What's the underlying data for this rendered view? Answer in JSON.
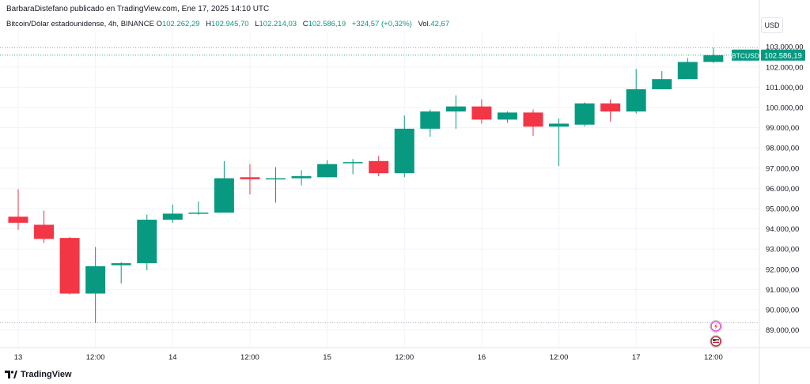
{
  "header": {
    "text": "BarbaraDistefano publicado en TradingView.com, Ene 17, 2025 14:10 UTC"
  },
  "legend": {
    "symbol": "Bitcoin/Dólar estadounidense, 4h, BINANCE",
    "open_label": "O",
    "open": "102.262,29",
    "high_label": "H",
    "high": "102.945,70",
    "low_label": "L",
    "low": "102.214,03",
    "close_label": "C",
    "close": "102.586,19",
    "change": "+324,57 (+0,32%)",
    "vol_label": "Vol.",
    "vol": "42,67"
  },
  "currency": "USD",
  "price_tag": {
    "symbol": "BTCUSD",
    "value": "102.586,19"
  },
  "footer": {
    "brand": "TradingView"
  },
  "colors": {
    "up": "#089981",
    "down": "#f23645",
    "grid": "#f0f3fa"
  },
  "icons": [
    "lightning-event-icon",
    "us-flag-event-icon"
  ],
  "chart_data": {
    "type": "candlestick",
    "title": "Bitcoin/Dólar estadounidense, 4h, BINANCE",
    "interval": "4h",
    "yaxis_ticks": [
      103000,
      102000,
      101000,
      100000,
      99000,
      98000,
      97000,
      96000,
      95000,
      94000,
      93000,
      92000,
      91000,
      90000,
      89000
    ],
    "yaxis_tick_labels": [
      "103.000,00",
      "102.000,00",
      "101.000,00",
      "100.000,00",
      "99.000,00",
      "98.000,00",
      "97.000,00",
      "96.000,00",
      "95.000,00",
      "94.000,00",
      "93.000,00",
      "92.000,00",
      "91.000,00",
      "90.000,00",
      "89.000,00"
    ],
    "ylim": [
      88500,
      103300
    ],
    "xaxis_labels": [
      {
        "label": "13",
        "index": 0
      },
      {
        "label": "12:00",
        "index": 3
      },
      {
        "label": "14",
        "index": 6
      },
      {
        "label": "12:00",
        "index": 9
      },
      {
        "label": "15",
        "index": 12
      },
      {
        "label": "12:00",
        "index": 15
      },
      {
        "label": "16",
        "index": 18
      },
      {
        "label": "12:00",
        "index": 21
      },
      {
        "label": "17",
        "index": 24
      },
      {
        "label": "12:00",
        "index": 27
      }
    ],
    "candles": [
      {
        "o": 94600,
        "h": 95950,
        "l": 93950,
        "c": 94300
      },
      {
        "o": 94200,
        "h": 94900,
        "l": 93300,
        "c": 93500
      },
      {
        "o": 93550,
        "h": 93600,
        "l": 90750,
        "c": 90800
      },
      {
        "o": 90800,
        "h": 93100,
        "l": 89350,
        "c": 92150
      },
      {
        "o": 92200,
        "h": 92350,
        "l": 91300,
        "c": 92300
      },
      {
        "o": 92300,
        "h": 94700,
        "l": 91950,
        "c": 94450
      },
      {
        "o": 94450,
        "h": 95200,
        "l": 94300,
        "c": 94750
      },
      {
        "o": 94750,
        "h": 95350,
        "l": 94700,
        "c": 94800
      },
      {
        "o": 94800,
        "h": 97350,
        "l": 94800,
        "c": 96500
      },
      {
        "o": 96550,
        "h": 97200,
        "l": 95700,
        "c": 96450
      },
      {
        "o": 96450,
        "h": 97050,
        "l": 95300,
        "c": 96500
      },
      {
        "o": 96500,
        "h": 96900,
        "l": 96150,
        "c": 96600
      },
      {
        "o": 96550,
        "h": 97400,
        "l": 96550,
        "c": 97200
      },
      {
        "o": 97250,
        "h": 97450,
        "l": 96700,
        "c": 97300
      },
      {
        "o": 97350,
        "h": 97600,
        "l": 96600,
        "c": 96750
      },
      {
        "o": 96750,
        "h": 99600,
        "l": 96550,
        "c": 98950
      },
      {
        "o": 98950,
        "h": 99900,
        "l": 98550,
        "c": 99800
      },
      {
        "o": 99800,
        "h": 100600,
        "l": 98950,
        "c": 100050
      },
      {
        "o": 100050,
        "h": 100400,
        "l": 99200,
        "c": 99400
      },
      {
        "o": 99400,
        "h": 99800,
        "l": 99250,
        "c": 99750
      },
      {
        "o": 99750,
        "h": 99900,
        "l": 98600,
        "c": 99050
      },
      {
        "o": 99050,
        "h": 99450,
        "l": 97100,
        "c": 99200
      },
      {
        "o": 99150,
        "h": 100250,
        "l": 99050,
        "c": 100200
      },
      {
        "o": 100200,
        "h": 100400,
        "l": 99300,
        "c": 99800
      },
      {
        "o": 99800,
        "h": 101900,
        "l": 99700,
        "c": 100900
      },
      {
        "o": 100900,
        "h": 101800,
        "l": 100900,
        "c": 101400
      },
      {
        "o": 101400,
        "h": 102450,
        "l": 101400,
        "c": 102250
      },
      {
        "o": 102250,
        "h": 102950,
        "l": 102200,
        "c": 102586
      }
    ],
    "last_price": 102586.19,
    "high_marker": 102945.7,
    "grid": true
  }
}
